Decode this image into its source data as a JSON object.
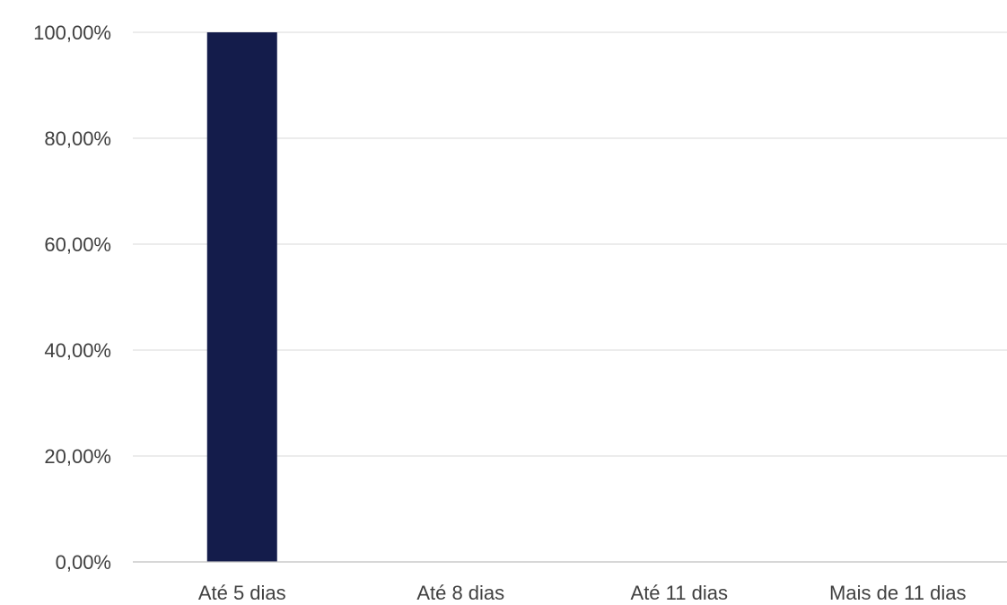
{
  "chart_data": {
    "type": "bar",
    "title": "",
    "xlabel": "",
    "ylabel": "",
    "categories": [
      "Até 5 dias",
      "Até 8 dias",
      "Até 11 dias",
      "Mais de 11 dias"
    ],
    "values": [
      100,
      0,
      0,
      0
    ],
    "ylim": [
      0,
      100
    ],
    "y_ticks": [
      0,
      20,
      40,
      60,
      80,
      100
    ],
    "y_tick_labels": [
      "0,00%",
      "20,00%",
      "40,00%",
      "60,00%",
      "80,00%",
      "100,00%"
    ],
    "grid": true,
    "legend": "none",
    "bar_color": "#141c4b"
  }
}
